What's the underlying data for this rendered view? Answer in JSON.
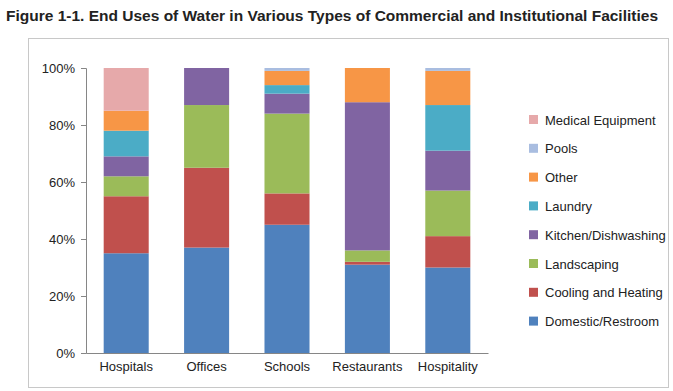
{
  "chart_data": {
    "type": "bar",
    "stacked": true,
    "grid": false,
    "legend": "right",
    "title": "Figure 1-1. End Uses of Water in Various Types of Commercial and Institutional Facilities",
    "categories": [
      "Hospitals",
      "Offices",
      "Schools",
      "Restaurants",
      "Hospitality"
    ],
    "ylim": [
      0,
      100
    ],
    "yticks": [
      {
        "value": 0,
        "label": "0%"
      },
      {
        "value": 20,
        "label": "20%"
      },
      {
        "value": 40,
        "label": "40%"
      },
      {
        "value": 60,
        "label": "60%"
      },
      {
        "value": 80,
        "label": "80%"
      },
      {
        "value": 100,
        "label": "100%"
      }
    ],
    "series": [
      {
        "name": "Domestic/Restroom",
        "color": "#4f81bd",
        "values": [
          35,
          37,
          45,
          31,
          30
        ]
      },
      {
        "name": "Cooling and Heating",
        "color": "#c0504d",
        "values": [
          20,
          28,
          11,
          1,
          11
        ]
      },
      {
        "name": "Landscaping",
        "color": "#9bbb59",
        "values": [
          7,
          22,
          28,
          4,
          16
        ]
      },
      {
        "name": "Kitchen/Dishwashing",
        "color": "#8064a2",
        "values": [
          7,
          13,
          7,
          52,
          14
        ]
      },
      {
        "name": "Laundry",
        "color": "#4bacc6",
        "values": [
          9,
          0,
          3,
          0,
          16
        ]
      },
      {
        "name": "Other",
        "color": "#f79646",
        "values": [
          7,
          0,
          5,
          12,
          12
        ]
      },
      {
        "name": "Pools",
        "color": "#a9bde0",
        "values": [
          0,
          0,
          1,
          0,
          1
        ]
      },
      {
        "name": "Medical Equipment",
        "color": "#e6a9aa",
        "values": [
          15,
          0,
          0,
          0,
          0
        ]
      }
    ]
  }
}
